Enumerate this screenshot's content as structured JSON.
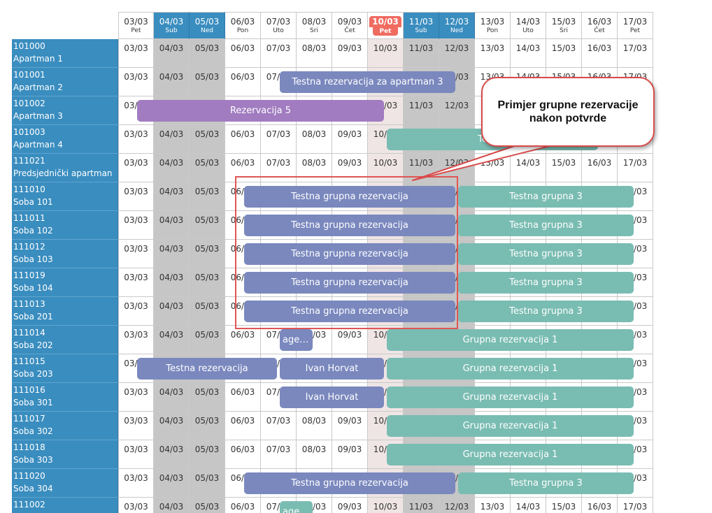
{
  "days": [
    {
      "date": "03/03",
      "dow": "Pet",
      "type": "normal"
    },
    {
      "date": "04/03",
      "dow": "Sub",
      "type": "weekend"
    },
    {
      "date": "05/03",
      "dow": "Ned",
      "type": "weekend"
    },
    {
      "date": "06/03",
      "dow": "Pon",
      "type": "normal"
    },
    {
      "date": "07/03",
      "dow": "Uto",
      "type": "normal"
    },
    {
      "date": "08/03",
      "dow": "Sri",
      "type": "normal"
    },
    {
      "date": "09/03",
      "dow": "Čet",
      "type": "normal"
    },
    {
      "date": "10/03",
      "dow": "Pet",
      "type": "today"
    },
    {
      "date": "11/03",
      "dow": "Sub",
      "type": "weekend"
    },
    {
      "date": "12/03",
      "dow": "Ned",
      "type": "weekend"
    },
    {
      "date": "13/03",
      "dow": "Pon",
      "type": "normal"
    },
    {
      "date": "14/03",
      "dow": "Uto",
      "type": "normal"
    },
    {
      "date": "15/03",
      "dow": "Sri",
      "type": "normal"
    },
    {
      "date": "16/03",
      "dow": "Čet",
      "type": "normal"
    },
    {
      "date": "17/03",
      "dow": "Pet",
      "type": "normal"
    }
  ],
  "rooms": [
    {
      "code": "101000",
      "name": "Apartman 1"
    },
    {
      "code": "101001",
      "name": "Apartman 2"
    },
    {
      "code": "101002",
      "name": "Apartman 3"
    },
    {
      "code": "101003",
      "name": "Apartman 4"
    },
    {
      "code": "111021",
      "name": "Predsjednički apartman"
    },
    {
      "code": "111010",
      "name": "Soba 101"
    },
    {
      "code": "111011",
      "name": "Soba 102"
    },
    {
      "code": "111012",
      "name": "Soba 103"
    },
    {
      "code": "111019",
      "name": "Soba 104"
    },
    {
      "code": "111013",
      "name": "Soba 201"
    },
    {
      "code": "111014",
      "name": "Soba 202"
    },
    {
      "code": "111015",
      "name": "Soba 203"
    },
    {
      "code": "111016",
      "name": "Soba 301"
    },
    {
      "code": "111017",
      "name": "Soba 302"
    },
    {
      "code": "111018",
      "name": "Soba 303"
    },
    {
      "code": "111020",
      "name": "Soba 304"
    },
    {
      "code": "111002",
      "name": ""
    }
  ],
  "reservations": [
    {
      "row": 1,
      "start": 4,
      "end": 9,
      "label": "Testna rezervacija za apartman 3",
      "color": "purple"
    },
    {
      "row": 2,
      "start": 0,
      "end": 7,
      "label": "Rezervacija 5",
      "color": "violet"
    },
    {
      "row": 3,
      "start": 7,
      "end": 13,
      "label": "Testna",
      "color": "teal"
    },
    {
      "row": 5,
      "start": 3,
      "end": 9,
      "label": "Testna grupna rezervacija",
      "color": "purple"
    },
    {
      "row": 5,
      "start": 9,
      "end": 14,
      "label": "Testna grupna 3",
      "color": "teal"
    },
    {
      "row": 6,
      "start": 3,
      "end": 9,
      "label": "Testna grupna rezervacija",
      "color": "purple"
    },
    {
      "row": 6,
      "start": 9,
      "end": 14,
      "label": "Testna grupna 3",
      "color": "teal"
    },
    {
      "row": 7,
      "start": 3,
      "end": 9,
      "label": "Testna grupna rezervacija",
      "color": "purple"
    },
    {
      "row": 7,
      "start": 9,
      "end": 14,
      "label": "Testna grupna 3",
      "color": "teal"
    },
    {
      "row": 8,
      "start": 3,
      "end": 9,
      "label": "Testna grupna rezervacija",
      "color": "purple"
    },
    {
      "row": 8,
      "start": 9,
      "end": 14,
      "label": "Testna grupna 3",
      "color": "teal"
    },
    {
      "row": 9,
      "start": 3,
      "end": 9,
      "label": "Testna grupna rezervacija",
      "color": "purple"
    },
    {
      "row": 9,
      "start": 9,
      "end": 14,
      "label": "Testna grupna 3",
      "color": "teal"
    },
    {
      "row": 10,
      "start": 4,
      "end": 5,
      "label": "agen…",
      "color": "purple"
    },
    {
      "row": 10,
      "start": 7,
      "end": 14,
      "label": "Grupna rezervacija 1",
      "color": "teal"
    },
    {
      "row": 11,
      "start": 0,
      "end": 4,
      "label": "Testna rezervacija",
      "color": "purple"
    },
    {
      "row": 11,
      "start": 4,
      "end": 7,
      "label": "Ivan Horvat",
      "color": "purple"
    },
    {
      "row": 11,
      "start": 7,
      "end": 14,
      "label": "Grupna rezervacija 1",
      "color": "teal"
    },
    {
      "row": 12,
      "start": 4,
      "end": 7,
      "label": "Ivan Horvat",
      "color": "purple"
    },
    {
      "row": 12,
      "start": 7,
      "end": 14,
      "label": "Grupna rezervacija 1",
      "color": "teal"
    },
    {
      "row": 13,
      "start": 7,
      "end": 14,
      "label": "Grupna rezervacija 1",
      "color": "teal"
    },
    {
      "row": 14,
      "start": 7,
      "end": 14,
      "label": "Grupna rezervacija 1",
      "color": "teal"
    },
    {
      "row": 15,
      "start": 3,
      "end": 9,
      "label": "Testna grupna rezervacija",
      "color": "purple"
    },
    {
      "row": 15,
      "start": 9,
      "end": 14,
      "label": "Testna grupna 3",
      "color": "teal"
    },
    {
      "row": 16,
      "start": 4,
      "end": 5,
      "label": "agen…",
      "color": "teal"
    }
  ],
  "callout": {
    "text": "Primjer grupne rezervacije nakon potvrde"
  },
  "colors": {
    "weekend_header": "#3a8dbf",
    "room_column": "#3a8dbf",
    "weekend_cell": "#c6c6c6",
    "today_badge": "#f06b60",
    "reservation_purple": "#7a88be",
    "reservation_violet": "#a17cc0",
    "reservation_teal": "#79bcb2",
    "annotation_red": "#e05555"
  }
}
